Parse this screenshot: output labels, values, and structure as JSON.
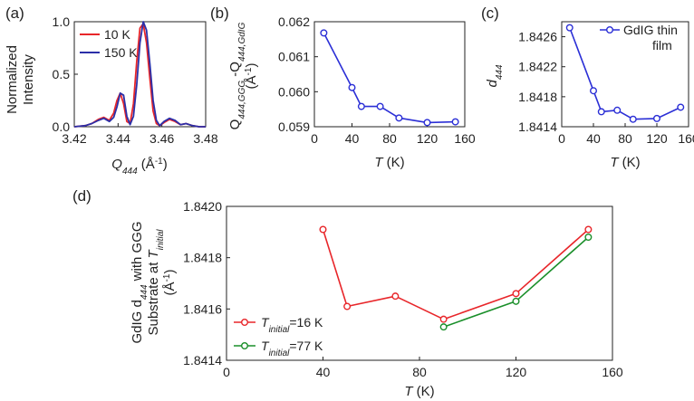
{
  "chart_data": [
    {
      "id": "a",
      "type": "line",
      "panel_label": "(a)",
      "xlabel": "Q444 (Å⁻¹)",
      "xlabel_parts": {
        "main": "Q",
        "sub": "444",
        "rest": " (Å",
        "sup": "-1",
        "close": ")"
      },
      "ylabel_lines": [
        "Normalized",
        "Intensity"
      ],
      "xlim": [
        3.42,
        3.48
      ],
      "ylim": [
        0,
        1.0
      ],
      "xticks": [
        3.42,
        3.44,
        3.46,
        3.48
      ],
      "xtick_labels": [
        "3.42",
        "3.44",
        "3.46",
        "3.48"
      ],
      "yticks": [
        0.0,
        0.5,
        1.0
      ],
      "ytick_labels": [
        "0.0",
        "0.5",
        "1.0"
      ],
      "legend_position": "top-left",
      "series": [
        {
          "name": "10 K",
          "color": "#e8262a",
          "x": [
            3.42,
            3.425,
            3.428,
            3.431,
            3.4335,
            3.436,
            3.438,
            3.4395,
            3.441,
            3.4425,
            3.444,
            3.4455,
            3.447,
            3.4485,
            3.45,
            3.4515,
            3.453,
            3.4545,
            3.456,
            3.4575,
            3.459,
            3.461,
            3.4635,
            3.466,
            3.4685,
            3.471,
            3.474,
            3.477,
            3.48
          ],
          "y": [
            0.0,
            0.01,
            0.03,
            0.07,
            0.09,
            0.06,
            0.13,
            0.25,
            0.32,
            0.22,
            0.05,
            0.03,
            0.22,
            0.62,
            0.94,
            0.98,
            0.8,
            0.46,
            0.15,
            0.03,
            0.01,
            0.04,
            0.07,
            0.05,
            0.02,
            0.03,
            0.01,
            0.0,
            0.0
          ]
        },
        {
          "name": "150 K",
          "color": "#2b2fa8",
          "x": [
            3.42,
            3.425,
            3.428,
            3.431,
            3.4335,
            3.436,
            3.438,
            3.4395,
            3.441,
            3.4425,
            3.444,
            3.4455,
            3.447,
            3.4485,
            3.45,
            3.4515,
            3.453,
            3.4545,
            3.456,
            3.4575,
            3.459,
            3.461,
            3.4635,
            3.466,
            3.4685,
            3.471,
            3.474,
            3.477,
            3.48
          ],
          "y": [
            0.0,
            0.01,
            0.03,
            0.06,
            0.08,
            0.05,
            0.09,
            0.19,
            0.32,
            0.3,
            0.1,
            0.02,
            0.1,
            0.4,
            0.8,
            1.0,
            0.92,
            0.6,
            0.25,
            0.06,
            0.01,
            0.05,
            0.08,
            0.06,
            0.02,
            0.03,
            0.01,
            0.0,
            0.0
          ]
        }
      ]
    },
    {
      "id": "b",
      "type": "line",
      "panel_label": "(b)",
      "xlabel": "T (K)",
      "ylabel_parts": {
        "a": "Q",
        "a_sub": "444,GGG",
        "mid": " -Q",
        "b_sub": "444,GdIG",
        "unit": "(Å",
        "unit_sup": "-1",
        "unit_close": ")"
      },
      "xlim": [
        0,
        160
      ],
      "ylim": [
        0.059,
        0.062
      ],
      "xticks": [
        0,
        40,
        80,
        120,
        160
      ],
      "xtick_labels": [
        "0",
        "40",
        "80",
        "120",
        "160"
      ],
      "yticks": [
        0.059,
        0.06,
        0.061,
        0.062
      ],
      "ytick_labels": [
        "0.059",
        "0.060",
        "0.061",
        "0.062"
      ],
      "series": [
        {
          "color": "#2b2fd6",
          "x": [
            10,
            40,
            50,
            70,
            90,
            120,
            150
          ],
          "y": [
            0.06168,
            0.06012,
            0.05958,
            0.05958,
            0.05925,
            0.05912,
            0.05914
          ]
        }
      ]
    },
    {
      "id": "c",
      "type": "line",
      "panel_label": "(c)",
      "xlabel": "T (K)",
      "ylabel_parts": {
        "main": "d",
        "sub": "444"
      },
      "xlim": [
        0,
        160
      ],
      "ylim": [
        1.8414,
        1.8428
      ],
      "xticks": [
        0,
        40,
        80,
        120,
        160
      ],
      "xtick_labels": [
        "0",
        "40",
        "80",
        "120",
        "160"
      ],
      "yticks": [
        1.8414,
        1.8418,
        1.8422,
        1.8426
      ],
      "ytick_labels": [
        "1.8414",
        "1.8418",
        "1.8422",
        "1.8426"
      ],
      "legend_position": "top-right",
      "legend_lines": [
        "GdIG thin",
        "film"
      ],
      "series": [
        {
          "name": "GdIG thin film",
          "color": "#2b2fd6",
          "x": [
            10,
            40,
            50,
            70,
            90,
            120,
            150
          ],
          "y": [
            1.84272,
            1.84188,
            1.8416,
            1.84162,
            1.8415,
            1.84151,
            1.84166
          ]
        }
      ]
    },
    {
      "id": "d",
      "type": "line",
      "panel_label": "(d)",
      "xlabel": "T (K)",
      "ylabel_parts": {
        "line1_a": "GdIG d",
        "line1_sub": "444",
        "line1_b": " with GGG",
        "line2_a": "Substrate at ",
        "line2_t": "T",
        "line2_sub": "initial",
        "line3": "(Å",
        "line3_sup": "-1",
        "line3_close": ")"
      },
      "xlim": [
        0,
        160
      ],
      "ylim": [
        1.8414,
        1.842
      ],
      "xticks": [
        0,
        40,
        80,
        120,
        160
      ],
      "xtick_labels": [
        "0",
        "40",
        "80",
        "120",
        "160"
      ],
      "yticks": [
        1.8414,
        1.8416,
        1.8418,
        1.842
      ],
      "ytick_labels": [
        "1.8414",
        "1.8416",
        "1.8418",
        "1.8420"
      ],
      "legend_position": "bottom-left",
      "series": [
        {
          "name": "T_initial=16 K",
          "legend_parts": {
            "t": "T",
            "sub": "initial",
            "rest": "=16 K"
          },
          "color": "#e8262a",
          "x": [
            40,
            50,
            70,
            90,
            120,
            150
          ],
          "y": [
            1.84191,
            1.84161,
            1.84165,
            1.84156,
            1.84166,
            1.84191
          ]
        },
        {
          "name": "T_initial=77 K",
          "legend_parts": {
            "t": "T",
            "sub": "initial",
            "rest": "=77 K"
          },
          "color": "#1a8f2a",
          "x": [
            90,
            120,
            150
          ],
          "y": [
            1.84153,
            1.84163,
            1.84188
          ]
        }
      ]
    }
  ]
}
